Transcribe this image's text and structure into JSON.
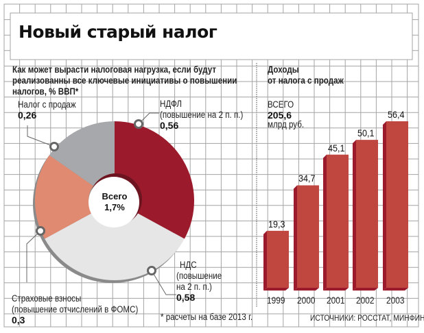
{
  "title": "Новый старый налог",
  "colors": {
    "grid": "#a3a3a3",
    "ndfl": "#9b1b2c",
    "nds": "#e6e6e6",
    "insurance": "#e08a72",
    "sales_tax": "#a7a8ab",
    "bar_face": "#c0473f",
    "bar_side": "#9b1b2c"
  },
  "chart_data": [
    {
      "type": "pie",
      "title": "Как может вырасти налоговая нагрузка, если будут реализованны все ключевые инициативы о повышении налогов, % ВВП*",
      "title_lines": [
        "Как может вырасти налоговая нагрузка, если будут",
        "реализованны все ключевые инициативы о повышении",
        "налогов, % ВВП*"
      ],
      "donut": true,
      "center_label": {
        "line1": "Всего",
        "line2": "1,7%"
      },
      "total": 1.7,
      "slices": [
        {
          "name": "НДФЛ",
          "lines": [
            "НДФЛ",
            "(повышение на 2 п. п.)"
          ],
          "value": 0.56,
          "value_label": "0,56",
          "color_key": "ndfl"
        },
        {
          "name": "НДС",
          "lines": [
            "НДС",
            "(повышение",
            "на 2 п. п.)"
          ],
          "value": 0.58,
          "value_label": "0,58",
          "color_key": "nds"
        },
        {
          "name": "Страховые взносы",
          "lines": [
            "Страховые взносы",
            "(повышение отчислений в ФОМС)"
          ],
          "value": 0.3,
          "value_label": "0,3",
          "color_key": "insurance"
        },
        {
          "name": "Налог с продаж",
          "lines": [
            "Налог с продаж"
          ],
          "value": 0.26,
          "value_label": "0,26",
          "color_key": "sales_tax"
        }
      ],
      "footnote": "* расчеты на базе 2013 г."
    },
    {
      "type": "bar",
      "title": "Доходы от налога с продаж",
      "title_lines": [
        "Доходы",
        "от налога с продаж"
      ],
      "total_label": {
        "line1": "ВСЕГО",
        "line2": "205,6",
        "line3": "млрд руб."
      },
      "categories": [
        "1999",
        "2000",
        "2001",
        "2002",
        "2003"
      ],
      "values": [
        19.3,
        34.7,
        45.1,
        50.1,
        56.4
      ],
      "value_labels": [
        "19,3",
        "34,7",
        "45,1",
        "50,1",
        "56,4"
      ],
      "unit": "млрд руб.",
      "ylim": [
        0,
        60
      ],
      "source": "ИСТОЧНИКИ: РОССТАТ, МИНФИН"
    }
  ]
}
